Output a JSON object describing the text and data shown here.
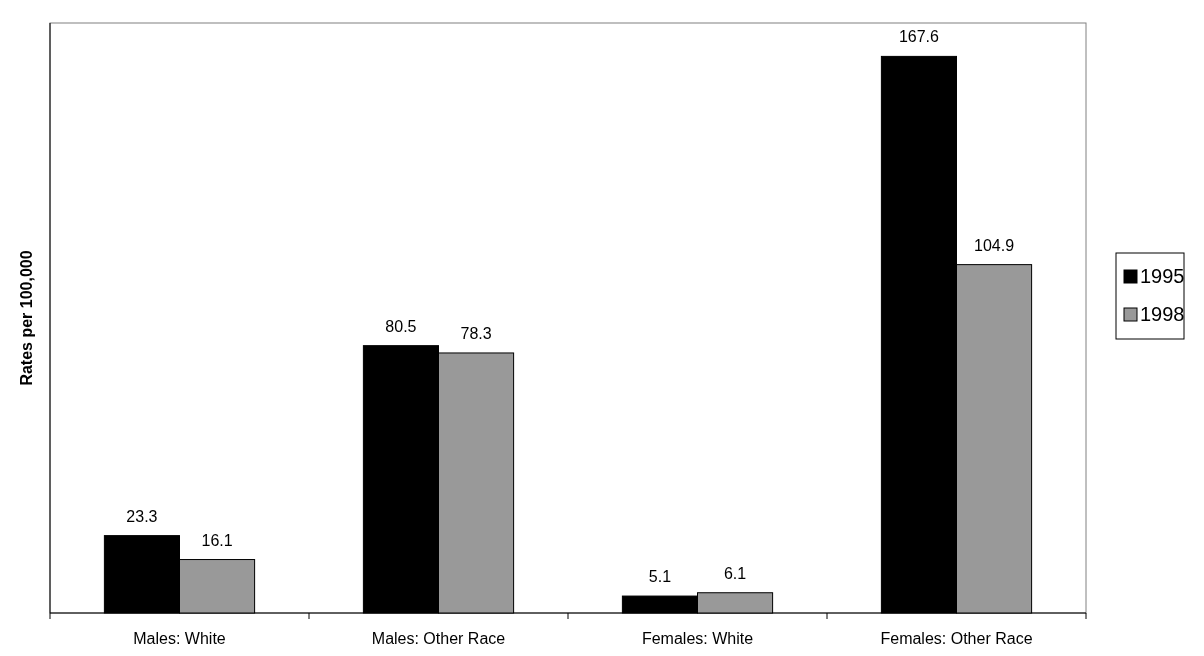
{
  "chart_data": {
    "type": "bar",
    "ylabel": "Rates per 100,000",
    "categories": [
      "Males: White",
      "Males: Other Race",
      "Females: White",
      "Females: Other Race"
    ],
    "series": [
      {
        "name": "1995",
        "color": "#000000",
        "values": [
          23.3,
          80.5,
          5.1,
          167.6
        ]
      },
      {
        "name": "1998",
        "color": "#999999",
        "values": [
          16.1,
          78.3,
          6.1,
          104.9
        ]
      }
    ],
    "data_labels": true,
    "legend": "right"
  }
}
